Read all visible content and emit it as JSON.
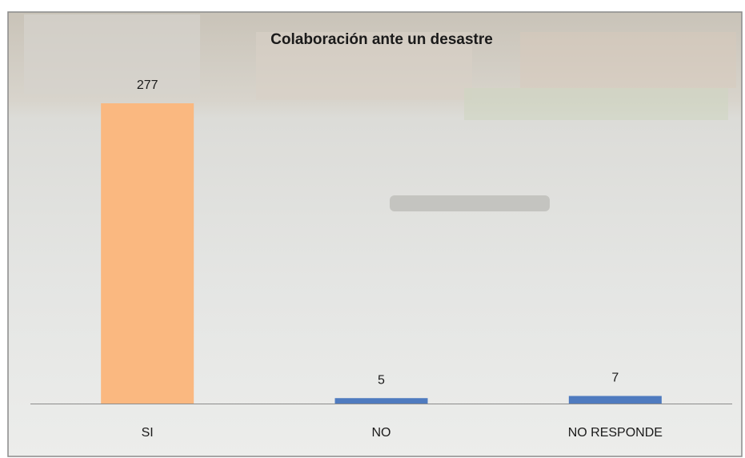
{
  "chart_data": {
    "type": "bar",
    "title": "Colaboración ante un desastre",
    "categories": [
      "SI",
      "NO",
      "NO RESPONDE"
    ],
    "values": [
      277,
      5,
      7
    ],
    "colors": [
      "#fab880",
      "#4f7bbf",
      "#4f7bbf"
    ]
  }
}
